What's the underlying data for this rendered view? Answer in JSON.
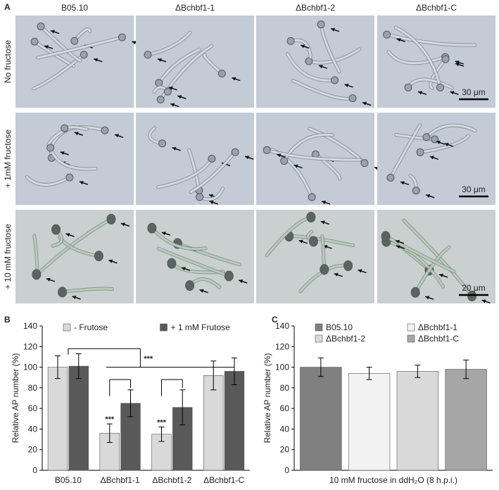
{
  "figure": {
    "panel_labels": [
      "A",
      "B",
      "C"
    ],
    "columns": [
      "B05.10",
      "ΔBchbf1-1",
      "ΔBchbf1-2",
      "ΔBchbf1-C"
    ],
    "rows": [
      "No fructose",
      "+ 1mM fructose",
      "+ 10 mM fructose"
    ],
    "scale_bars": [
      "30 μm",
      "30 μm",
      "20 μm"
    ]
  },
  "chart_data": [
    {
      "type": "bar",
      "ylabel": "Relative AP number (%)",
      "categories": [
        "B05.10",
        "ΔBchbf1-1",
        "ΔBchbf1-2",
        "ΔBchbf1-C"
      ],
      "series": [
        {
          "name": "- Frutose",
          "color": "#d9d9d9",
          "values": [
            100,
            36,
            35,
            92
          ],
          "errors": [
            11,
            9,
            7,
            14
          ]
        },
        {
          "name": "+ 1 mM Frutose",
          "color": "#595959",
          "values": [
            101,
            65,
            61,
            96
          ],
          "errors": [
            12,
            13,
            17,
            13
          ]
        }
      ],
      "ylim": [
        0,
        140
      ],
      "yticks": [
        0,
        20,
        40,
        60,
        80,
        100,
        120,
        140
      ],
      "annotations": [
        "***",
        "***",
        "***"
      ],
      "legend_columns": 2
    },
    {
      "type": "bar",
      "ylabel": "Relative AP number (%)",
      "xlabel": "10 mM fructose in ddH₂O (8 h.p.i.)",
      "categories": [
        null
      ],
      "series": [
        {
          "name": "B05.10",
          "color": "#808080",
          "values": [
            100
          ],
          "errors": [
            9
          ]
        },
        {
          "name": "ΔBchbf1-1",
          "color": "#f2f2f2",
          "values": [
            94
          ],
          "errors": [
            6
          ]
        },
        {
          "name": "ΔBchbf1-2",
          "color": "#d9d9d9",
          "values": [
            96
          ],
          "errors": [
            6
          ]
        },
        {
          "name": "ΔBchbf1-C",
          "color": "#a6a6a6",
          "values": [
            98
          ],
          "errors": [
            9
          ]
        }
      ],
      "ylim": [
        0,
        140
      ],
      "yticks": [
        0,
        20,
        40,
        60,
        80,
        100,
        120,
        140
      ],
      "legend_columns": 2
    }
  ]
}
